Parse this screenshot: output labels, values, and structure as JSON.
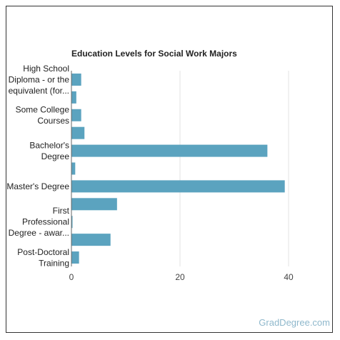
{
  "chart_data": {
    "type": "bar",
    "orientation": "horizontal",
    "title": "Education Levels for Social Work Majors",
    "xlabel": "",
    "ylabel": "",
    "xlim": [
      0,
      45
    ],
    "xticks": [
      0,
      20,
      40
    ],
    "grid": true,
    "bar_color": "#5ba3bf",
    "categories": [
      "High School Diploma - or the equivalent (for...",
      "",
      "Some College Courses",
      "",
      "Bachelor's Degree",
      "",
      "Master's Degree",
      "",
      "First Professional Degree - awar...",
      "",
      "Post-Doctoral Training"
    ],
    "category_label_lines": [
      [
        "High School",
        "Diploma - or the",
        "equivalent (for..."
      ],
      [],
      [
        "Some College",
        "Courses"
      ],
      [],
      [
        "Bachelor's",
        "Degree"
      ],
      [],
      [
        "Master's Degree"
      ],
      [],
      [
        "First",
        "Professional",
        "Degree - awar..."
      ],
      [],
      [
        "Post-Doctoral",
        "Training"
      ]
    ],
    "values": [
      1.8,
      0.9,
      1.8,
      2.4,
      36.1,
      0.7,
      39.3,
      8.4,
      0.2,
      7.2,
      1.4
    ]
  },
  "watermark": "GradDegree.com"
}
